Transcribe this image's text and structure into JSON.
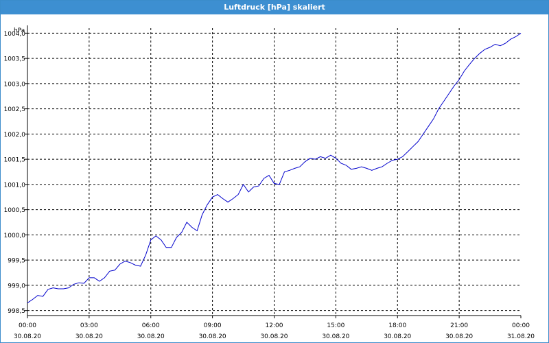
{
  "window": {
    "title": "Luftdruck [hPa] skaliert"
  },
  "chart_data": {
    "type": "line",
    "title": "Luftdruck [hPa] skaliert",
    "ylabel": "hPa",
    "xlabel": "",
    "xlim": [
      0,
      24
    ],
    "ylim": [
      998.4,
      1004.1
    ],
    "grid": true,
    "y_ticks": [
      "998,5",
      "999,0",
      "999,5",
      "1000,0",
      "1000,5",
      "1001,0",
      "1001,5",
      "1002,0",
      "1002,5",
      "1003,0",
      "1003,5",
      "1004,0"
    ],
    "x_ticks": [
      {
        "time": "00:00",
        "date": "30.08.20"
      },
      {
        "time": "03:00",
        "date": "30.08.20"
      },
      {
        "time": "06:00",
        "date": "30.08.20"
      },
      {
        "time": "09:00",
        "date": "30.08.20"
      },
      {
        "time": "12:00",
        "date": "30.08.20"
      },
      {
        "time": "15:00",
        "date": "30.08.20"
      },
      {
        "time": "18:00",
        "date": "30.08.20"
      },
      {
        "time": "21:00",
        "date": "30.08.20"
      },
      {
        "time": "00:00",
        "date": "31.08.20"
      }
    ],
    "series": [
      {
        "color": "#0000cc",
        "x": [
          0.0,
          0.25,
          0.5,
          0.75,
          1.0,
          1.25,
          1.5,
          1.75,
          2.0,
          2.25,
          2.5,
          2.75,
          3.0,
          3.25,
          3.5,
          3.75,
          4.0,
          4.25,
          4.5,
          4.75,
          5.0,
          5.25,
          5.5,
          5.75,
          6.0,
          6.25,
          6.5,
          6.75,
          7.0,
          7.25,
          7.5,
          7.75,
          8.0,
          8.25,
          8.5,
          8.75,
          9.0,
          9.25,
          9.5,
          9.75,
          10.0,
          10.25,
          10.5,
          10.75,
          11.0,
          11.25,
          11.5,
          11.75,
          12.0,
          12.25,
          12.5,
          12.75,
          13.0,
          13.25,
          13.5,
          13.75,
          14.0,
          14.25,
          14.5,
          14.75,
          15.0,
          15.25,
          15.5,
          15.75,
          16.0,
          16.25,
          16.5,
          16.75,
          17.0,
          17.25,
          17.5,
          17.75,
          18.0,
          18.25,
          18.5,
          18.75,
          19.0,
          19.25,
          19.5,
          19.75,
          20.0,
          20.25,
          20.5,
          20.75,
          21.0,
          21.25,
          21.5,
          21.75,
          22.0,
          22.25,
          22.5,
          22.75,
          23.0,
          23.25,
          23.5,
          23.75,
          24.0
        ],
        "values": [
          998.65,
          998.72,
          998.8,
          998.78,
          998.92,
          998.95,
          998.93,
          998.93,
          998.95,
          999.02,
          999.05,
          999.04,
          999.15,
          999.15,
          999.08,
          999.15,
          999.28,
          999.3,
          999.42,
          999.48,
          999.45,
          999.4,
          999.38,
          999.6,
          999.9,
          999.98,
          999.9,
          999.75,
          999.75,
          999.95,
          1000.05,
          1000.25,
          1000.15,
          1000.08,
          1000.4,
          1000.6,
          1000.75,
          1000.8,
          1000.72,
          1000.65,
          1000.72,
          1000.8,
          1001.0,
          1000.85,
          1000.95,
          1000.97,
          1001.12,
          1001.18,
          1001.02,
          1001.0,
          1001.25,
          1001.28,
          1001.32,
          1001.35,
          1001.45,
          1001.52,
          1001.5,
          1001.55,
          1001.52,
          1001.58,
          1001.52,
          1001.42,
          1001.38,
          1001.3,
          1001.32,
          1001.35,
          1001.32,
          1001.28,
          1001.32,
          1001.35,
          1001.42,
          1001.48,
          1001.5,
          1001.55,
          1001.65,
          1001.75,
          1001.85,
          1002.0,
          1002.15,
          1002.3,
          1002.5,
          1002.65,
          1002.8,
          1002.95,
          1003.08,
          1003.25,
          1003.38,
          1003.5,
          1003.6,
          1003.68,
          1003.72,
          1003.78,
          1003.75,
          1003.8,
          1003.88,
          1003.93,
          1004.0
        ]
      }
    ]
  }
}
